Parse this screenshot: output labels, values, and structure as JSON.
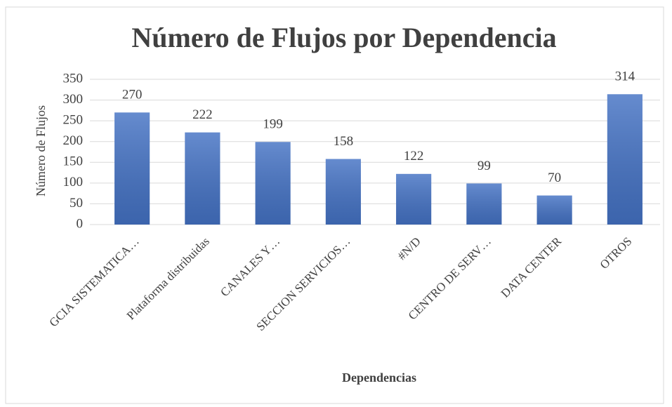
{
  "chart_data": {
    "type": "bar",
    "title": "Número de Flujos por Dependencia",
    "x_label": "Dependencias",
    "y_label": "Número de Flujos",
    "categories": [
      "GCIA SISTEMATICA…",
      "Plataforma distribuidas",
      "CANALES Y…",
      "SECCION SERVICIOS…",
      "#N/D",
      "CENTRO DE SERV…",
      "DATA CENTER",
      "OTROS"
    ],
    "values": [
      270,
      222,
      199,
      158,
      122,
      99,
      70,
      314
    ],
    "color": "#4472c4",
    "ylim": [
      0,
      350
    ],
    "yticks": [
      0,
      50,
      100,
      150,
      200,
      250,
      300,
      350
    ],
    "grid": true
  }
}
